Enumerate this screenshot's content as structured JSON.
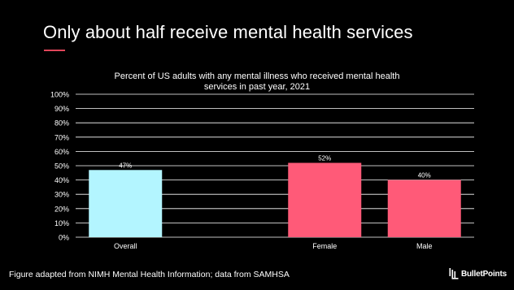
{
  "slide": {
    "title": "Only about half receive mental health services",
    "footer": "Figure adapted from NIMH Mental Health Information; data from SAMHSA",
    "brand": "BulletPoints",
    "accent_color": "#e0465a"
  },
  "chart_data": {
    "type": "bar",
    "title_lines": [
      "Percent of US adults with any mental illness who received mental health",
      "services in past year, 2021"
    ],
    "categories": [
      "Overall",
      "",
      "Female",
      "Male"
    ],
    "values": [
      47,
      null,
      52,
      40
    ],
    "data_labels": [
      "47%",
      "",
      "52%",
      "40%"
    ],
    "bar_colors": [
      "#b3f5ff",
      null,
      "#ff5a78",
      "#ff5a78"
    ],
    "ylim": [
      0,
      100
    ],
    "yticks": [
      0,
      10,
      20,
      30,
      40,
      50,
      60,
      70,
      80,
      90,
      100
    ],
    "ytick_labels": [
      "0%",
      "10%",
      "20%",
      "30%",
      "40%",
      "50%",
      "60%",
      "70%",
      "80%",
      "90%",
      "100%"
    ],
    "grid": true,
    "grid_color": "#ffffff",
    "legend": "none"
  }
}
